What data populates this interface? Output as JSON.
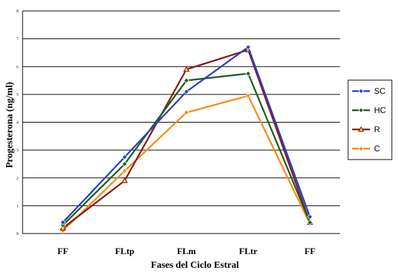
{
  "chart_data": {
    "type": "line",
    "categories": [
      "FF",
      "FLtp",
      "FLm",
      "FLtr",
      "FF"
    ],
    "xlabel": "Fases del Ciclo Estral",
    "ylabel": "Progesterona (ng/ml)",
    "ylim": [
      0,
      8
    ],
    "yticks": [
      "0",
      "1",
      "2",
      "3",
      "4",
      "5",
      "6",
      "7",
      "8"
    ],
    "grid": "horizontal",
    "legend_position": "right",
    "series": [
      {
        "name": "SC",
        "color": "#2a41c4",
        "marker": "diamond",
        "values": [
          0.4,
          2.75,
          5.1,
          6.7,
          0.6
        ]
      },
      {
        "name": "HC",
        "color": "#1f5c1f",
        "marker": "diamond",
        "values": [
          0.3,
          2.5,
          5.5,
          5.75,
          0.4
        ]
      },
      {
        "name": "R",
        "color": "#8b1a1a",
        "marker": "triangle",
        "values": [
          0.2,
          1.9,
          5.9,
          6.6,
          0.4
        ]
      },
      {
        "name": "C",
        "color": "#f98b1c",
        "marker": "diamond",
        "values": [
          0.1,
          2.25,
          4.35,
          4.95,
          0.35
        ]
      }
    ]
  }
}
